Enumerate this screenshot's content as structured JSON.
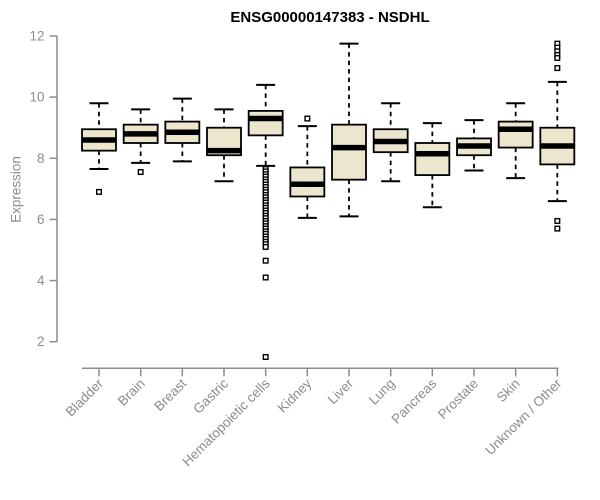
{
  "chart_data": {
    "type": "boxplot",
    "title": "ENSG00000147383 - NSDHL",
    "ylabel": "Expression",
    "xlabel": "",
    "ylim": [
      2,
      12
    ],
    "yticks": [
      2,
      4,
      6,
      8,
      10,
      12
    ],
    "grid": false,
    "legend": null,
    "categories": [
      "Bladder",
      "Brain",
      "Breast",
      "Gastric",
      "Hematopoietic cells",
      "Kidney",
      "Liver",
      "Lung",
      "Pancreas",
      "Prostate",
      "Skin",
      "Unknown / Other"
    ],
    "boxes": [
      {
        "category": "Bladder",
        "whisker_low": 7.65,
        "q1": 8.25,
        "median": 8.6,
        "q3": 8.95,
        "whisker_high": 9.8,
        "outliers": [
          6.9
        ]
      },
      {
        "category": "Brain",
        "whisker_low": 7.85,
        "q1": 8.5,
        "median": 8.8,
        "q3": 9.1,
        "whisker_high": 9.6,
        "outliers": [
          7.55
        ]
      },
      {
        "category": "Breast",
        "whisker_low": 7.9,
        "q1": 8.5,
        "median": 8.85,
        "q3": 9.2,
        "whisker_high": 9.95,
        "outliers": []
      },
      {
        "category": "Gastric",
        "whisker_low": 7.25,
        "q1": 8.1,
        "median": 8.25,
        "q3": 9.0,
        "whisker_high": 9.6,
        "outliers": []
      },
      {
        "category": "Hematopoietic cells",
        "whisker_low": 7.75,
        "q1": 8.75,
        "median": 9.3,
        "q3": 9.55,
        "whisker_high": 10.4,
        "outliers": [
          7.65,
          7.57,
          7.48,
          7.4,
          7.31,
          7.23,
          7.14,
          7.06,
          6.97,
          6.89,
          6.8,
          6.72,
          6.63,
          6.55,
          6.46,
          6.38,
          6.29,
          6.21,
          6.12,
          6.04,
          5.95,
          5.87,
          5.78,
          5.7,
          5.61,
          5.53,
          5.44,
          5.36,
          5.27,
          5.19,
          5.1,
          4.65,
          4.1,
          1.5
        ]
      },
      {
        "category": "Kidney",
        "whisker_low": 6.05,
        "q1": 6.75,
        "median": 7.15,
        "q3": 7.7,
        "whisker_high": 9.05,
        "outliers": [
          9.3
        ]
      },
      {
        "category": "Liver",
        "whisker_low": 6.1,
        "q1": 7.3,
        "median": 8.35,
        "q3": 9.1,
        "whisker_high": 11.75,
        "outliers": []
      },
      {
        "category": "Lung",
        "whisker_low": 7.25,
        "q1": 8.2,
        "median": 8.55,
        "q3": 8.95,
        "whisker_high": 9.8,
        "outliers": []
      },
      {
        "category": "Pancreas",
        "whisker_low": 6.4,
        "q1": 7.45,
        "median": 8.15,
        "q3": 8.5,
        "whisker_high": 9.15,
        "outliers": []
      },
      {
        "category": "Prostate",
        "whisker_low": 7.6,
        "q1": 8.1,
        "median": 8.4,
        "q3": 8.65,
        "whisker_high": 9.25,
        "outliers": []
      },
      {
        "category": "Skin",
        "whisker_low": 7.35,
        "q1": 8.35,
        "median": 8.95,
        "q3": 9.2,
        "whisker_high": 9.8,
        "outliers": []
      },
      {
        "category": "Unknown / Other",
        "whisker_low": 6.6,
        "q1": 7.8,
        "median": 8.4,
        "q3": 9.0,
        "whisker_high": 10.5,
        "outliers": [
          11.75,
          11.62,
          11.5,
          11.38,
          11.28,
          10.95,
          5.95,
          5.7
        ]
      }
    ],
    "style": {
      "box_fill": "#EBE6CD",
      "box_stroke": "#000000",
      "median_color": "#000000",
      "whisker_color": "#000000",
      "outlier_color": "#000000",
      "axis_color": "#8C8C8C",
      "tick_label_color": "#8C8C8C",
      "title_color": "#000000",
      "background": "#FFFFFF"
    }
  }
}
